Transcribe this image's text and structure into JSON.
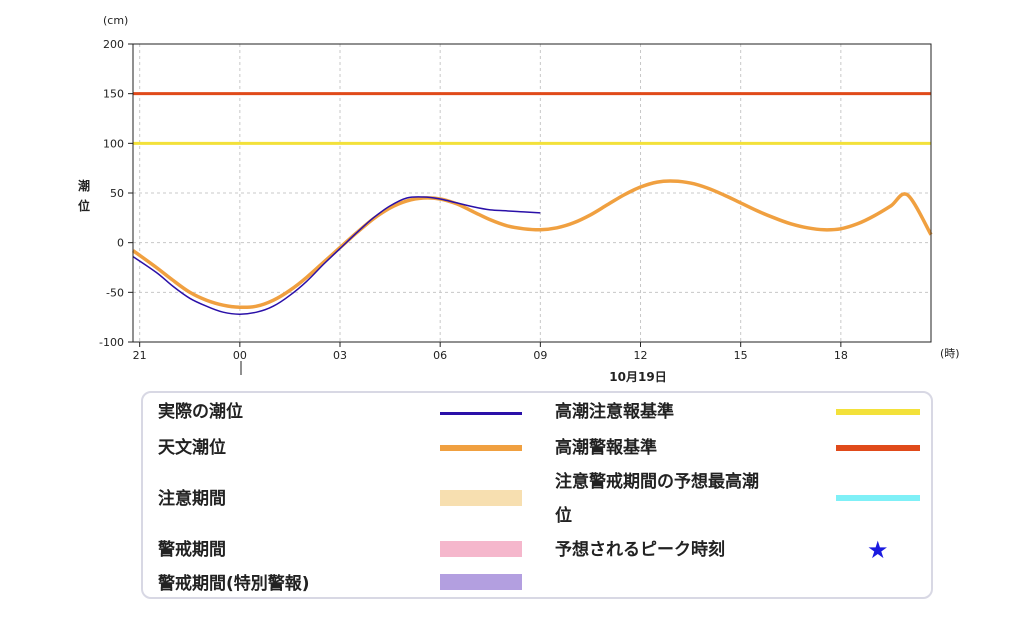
{
  "chart_data": {
    "type": "line",
    "unit": "(cm)",
    "ylabel": "潮位",
    "xunit": "(時)",
    "date_label": "10月19日",
    "ylim": [
      -100,
      200
    ],
    "yticks": [
      -100,
      -50,
      0,
      50,
      100,
      150,
      200
    ],
    "xticks": [
      {
        "label": "21",
        "t": 0
      },
      {
        "label": "00",
        "t": 3
      },
      {
        "label": "03",
        "t": 6
      },
      {
        "label": "06",
        "t": 9
      },
      {
        "label": "09",
        "t": 12
      },
      {
        "label": "12",
        "t": 15
      },
      {
        "label": "15",
        "t": 18
      },
      {
        "label": "18",
        "t": 21
      }
    ],
    "xlim_hours_from_21": [
      -0.2,
      23.7
    ],
    "grid": true,
    "series": [
      {
        "name": "天文潮位",
        "color": "#f0a040",
        "x_hours_from_21": [
          -0.2,
          0.5,
          1,
          1.5,
          2,
          2.5,
          3,
          3.5,
          4,
          4.5,
          5,
          5.5,
          6,
          6.5,
          7,
          7.5,
          8,
          8.5,
          9,
          9.5,
          10,
          10.5,
          11,
          11.5,
          12,
          12.5,
          13,
          13.5,
          14,
          14.5,
          15,
          15.5,
          16,
          16.5,
          17,
          17.5,
          18,
          18.5,
          19,
          19.5,
          20,
          20.5,
          21,
          21.5,
          22,
          22.5,
          23,
          23.7
        ],
        "values": [
          -8,
          -25,
          -38,
          -50,
          -58,
          -63,
          -65,
          -64,
          -58,
          -48,
          -35,
          -20,
          -5,
          10,
          24,
          35,
          42,
          45,
          44,
          39,
          31,
          23,
          17,
          14,
          13,
          15,
          20,
          28,
          38,
          48,
          56,
          61,
          62,
          60,
          55,
          48,
          40,
          32,
          25,
          19,
          15,
          13,
          14,
          19,
          27,
          37,
          48,
          8
        ]
      },
      {
        "name": "実際の潮位",
        "color": "#2a10a8",
        "x_hours_from_21": [
          -0.2,
          0.5,
          1,
          1.5,
          2,
          2.5,
          3,
          3.5,
          4,
          4.5,
          5,
          5.5,
          6,
          6.5,
          7,
          7.5,
          8,
          8.5,
          9,
          9.5,
          10,
          10.5,
          11,
          11.5,
          12
        ],
        "values": [
          -14,
          -30,
          -44,
          -56,
          -64,
          -70,
          -72,
          -70,
          -64,
          -53,
          -39,
          -22,
          -6,
          10,
          25,
          37,
          45,
          46,
          44,
          40,
          36,
          33,
          32,
          31,
          30
        ]
      }
    ],
    "thresholds": [
      {
        "name": "高潮警報基準",
        "value": 150,
        "color": "#e04a1a"
      },
      {
        "name": "高潮注意報基準",
        "value": 100,
        "color": "#f3e13a"
      }
    ]
  },
  "legend": {
    "items": [
      {
        "label": "実際の潮位",
        "kind": "line",
        "color": "#2a10a8"
      },
      {
        "label": "天文潮位",
        "kind": "thick",
        "color": "#f0a040"
      },
      {
        "label": "注意期間",
        "kind": "band",
        "color": "#f7dfb0"
      },
      {
        "label": "警戒期間",
        "kind": "band",
        "color": "#f5b7cc"
      },
      {
        "label": "警戒期間(特別警報)",
        "kind": "band",
        "color": "#b39fe0"
      },
      {
        "label": "高潮注意報基準",
        "kind": "thick",
        "color": "#f3e13a"
      },
      {
        "label": "高潮警報基準",
        "kind": "thick",
        "color": "#e04a1a"
      },
      {
        "label_line1": "注意警戒期間の予想最高潮",
        "label_line2": "位",
        "kind": "thick",
        "color": "#7ff0f7"
      },
      {
        "label": "予想されるピーク時刻",
        "kind": "star",
        "color": "#1a1ae0",
        "icon": "star-icon"
      }
    ]
  }
}
